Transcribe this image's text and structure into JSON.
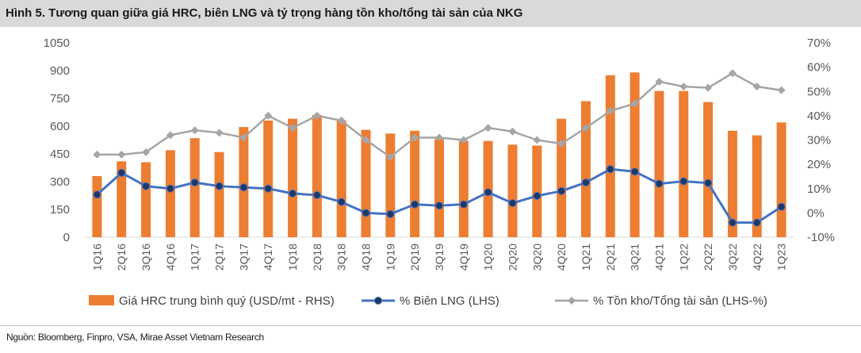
{
  "header": {
    "title": "Hình 5. Tương quan giữa giá HRC, biên LNG và tỷ trọng hàng tồn kho/tổng tài sản của NKG"
  },
  "footer": {
    "source": "Nguồn: Bloomberg, Finpro, VSA, Mirae Asset Vietnam Research"
  },
  "chart_data": {
    "type": "bar",
    "categories": [
      "1Q16",
      "2Q16",
      "3Q16",
      "4Q16",
      "1Q17",
      "2Q17",
      "3Q17",
      "4Q17",
      "1Q18",
      "2Q18",
      "3Q18",
      "4Q18",
      "1Q19",
      "2Q19",
      "3Q19",
      "4Q19",
      "1Q20",
      "2Q20",
      "3Q20",
      "4Q20",
      "1Q21",
      "2Q21",
      "3Q21",
      "4Q21",
      "1Q22",
      "2Q22",
      "3Q22",
      "4Q22",
      "1Q23"
    ],
    "left_axis": {
      "ylim": [
        0,
        1050
      ],
      "ticks": [
        "0",
        "150",
        "300",
        "450",
        "600",
        "750",
        "900",
        "1050"
      ]
    },
    "right_axis": {
      "ylim": [
        -10,
        70
      ],
      "ticks": [
        "-10%",
        "0%",
        "10%",
        "20%",
        "30%",
        "40%",
        "50%",
        "60%",
        "70%"
      ]
    },
    "grid": false,
    "legend_position": "bottom",
    "series": [
      {
        "name": "Giá HRC trung bình quý (USD/mt - RHS)",
        "kind": "bar",
        "axis": "left",
        "color": "#ED7D31",
        "values": [
          330,
          410,
          405,
          470,
          535,
          460,
          595,
          630,
          640,
          660,
          630,
          580,
          560,
          575,
          530,
          520,
          520,
          500,
          495,
          640,
          735,
          875,
          890,
          790,
          790,
          730,
          575,
          550,
          620
        ]
      },
      {
        "name": "% Biên LNG (LHS)",
        "kind": "line",
        "axis": "right",
        "color": "#4472C4",
        "marker": "circle",
        "values": [
          7.5,
          16.5,
          11,
          10,
          12.5,
          11,
          10.5,
          10,
          8,
          7.3,
          4.5,
          0,
          -0.5,
          3.5,
          3,
          3.5,
          8.5,
          4,
          7,
          9,
          12.5,
          18,
          17,
          12,
          13,
          12.3,
          -4,
          -4,
          2.5
        ]
      },
      {
        "name": "% Tồn kho/Tổng tài sản (LHS-%)",
        "kind": "line",
        "axis": "right",
        "color": "#A5A5A5",
        "marker": "diamond",
        "values": [
          24,
          24,
          25,
          32,
          34,
          33,
          31,
          40,
          35,
          40,
          38,
          30,
          23,
          31,
          31,
          30,
          35,
          33.5,
          30,
          28.5,
          35,
          42,
          45,
          54,
          52,
          51.5,
          57.5,
          52,
          50.5
        ]
      }
    ]
  }
}
